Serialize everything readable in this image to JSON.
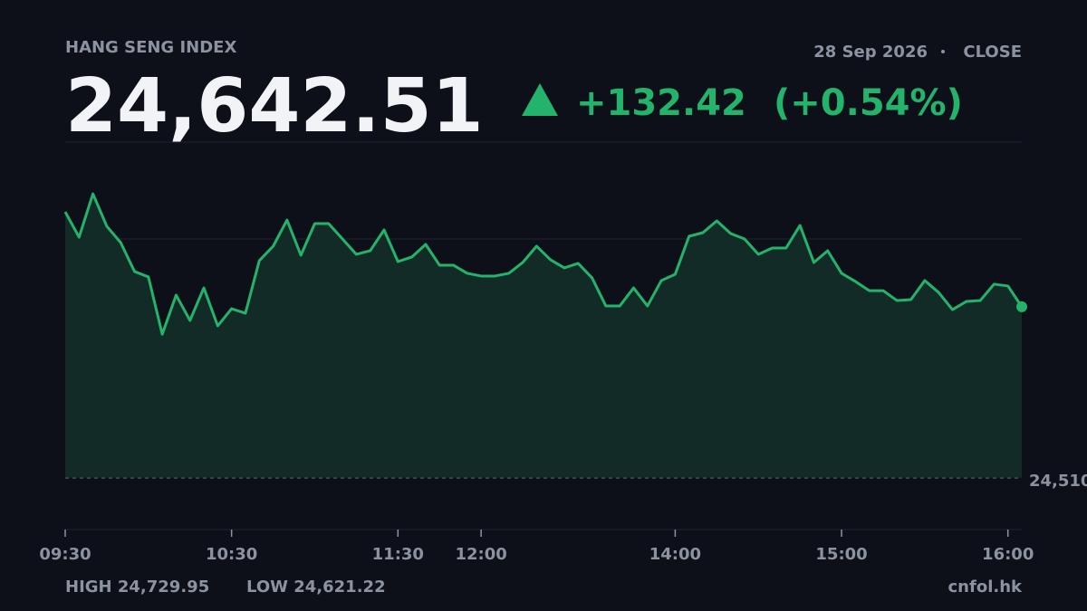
{
  "chart_data": {
    "type": "line",
    "title": "HANG SENG INDEX",
    "last": "24,642.51",
    "change": "+132.42",
    "change_pct": "(+0.54%)",
    "date": "28 Sep 2026",
    "session": "CLOSE",
    "high": "HIGH 24,729.95",
    "low": "LOW 24,621.22",
    "source": "cnfol.hk",
    "color": "#24b36b",
    "area_color": "#122b26",
    "categories": [
      "09:30",
      null,
      null,
      null,
      null,
      null,
      null,
      null,
      null,
      null,
      null,
      null,
      "10:30",
      null,
      null,
      null,
      null,
      null,
      null,
      null,
      null,
      null,
      null,
      null,
      "11:30",
      null,
      null,
      null,
      null,
      null,
      "12:00",
      null,
      null,
      null,
      null,
      null,
      null,
      null,
      null,
      null,
      null,
      null,
      null,
      null,
      "14:00",
      null,
      null,
      null,
      null,
      null,
      null,
      null,
      null,
      null,
      null,
      null,
      "15:00",
      null,
      null,
      null,
      null,
      null,
      null,
      null,
      null,
      null,
      null,
      null,
      "16:00",
      null
    ],
    "values": [
      24716.0,
      24696.4,
      24729.95,
      24704.8,
      24692.2,
      24669.8,
      24665.6,
      24621.22,
      24651.5,
      24631.9,
      24657.1,
      24627.7,
      24641.0,
      24637.5,
      24678.2,
      24689.4,
      24709.7,
      24682.4,
      24706.9,
      24706.9,
      24695.0,
      24683.1,
      24685.9,
      24702.0,
      24677.5,
      24681.0,
      24690.8,
      24674.7,
      24674.7,
      24668.4,
      24666.3,
      24666.3,
      24668.4,
      24676.8,
      24689.4,
      24678.9,
      24672.6,
      24676.1,
      24664.9,
      24643.1,
      24643.1,
      24657.1,
      24643.1,
      24662.8,
      24667.7,
      24697.1,
      24699.9,
      24709.0,
      24699.2,
      24695.0,
      24683.1,
      24688.0,
      24688.0,
      24705.5,
      24676.8,
      24685.9,
      24668.4,
      24662.1,
      24655.0,
      24655.0,
      24647.3,
      24648.0,
      24662.8,
      24653.6,
      24640.3,
      24646.6,
      24647.3,
      24660.0,
      24658.6,
      24642.51
    ],
    "ylim": [
      24470,
      24770
    ],
    "yticks": [
      24470,
      24545,
      24620,
      24695,
      24770
    ],
    "grid": true,
    "baseline": {
      "value": 24510.09,
      "label": "24,510"
    }
  }
}
